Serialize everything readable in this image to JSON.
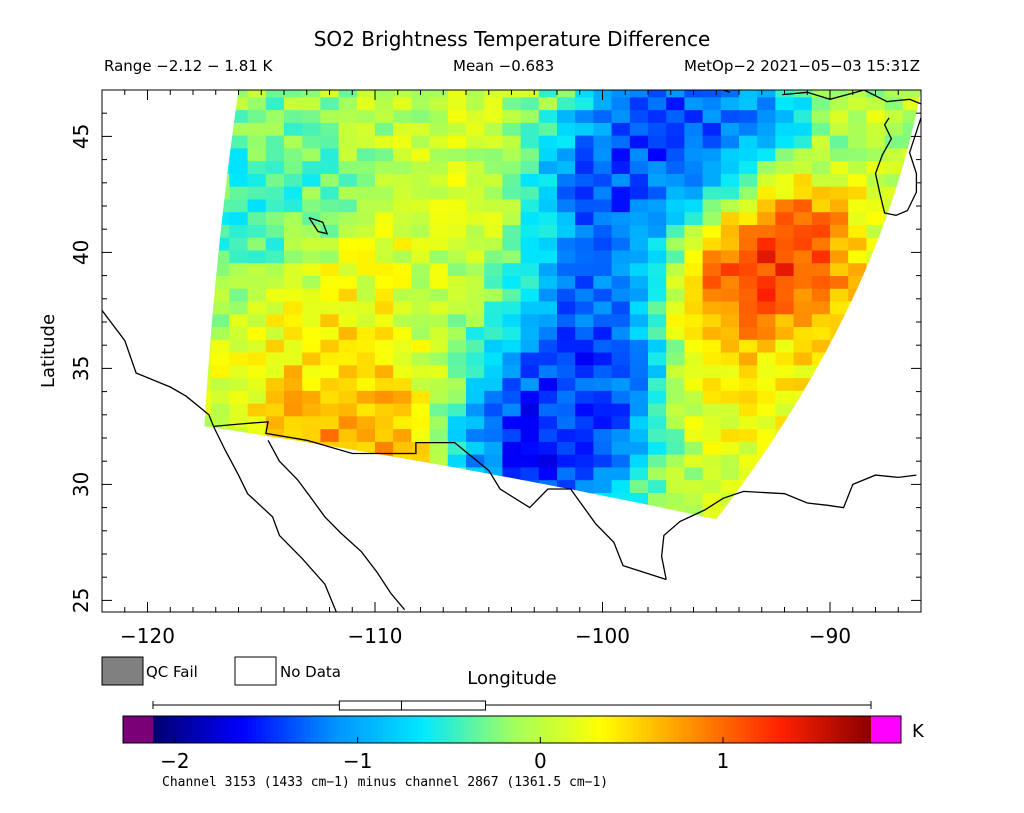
{
  "chart_data": {
    "type": "heatmap",
    "title": "SO2 Brightness Temperature Difference",
    "subtitle": {
      "range": "Range −2.12 − 1.81 K",
      "mean": "Mean −0.683",
      "platform_time": "MetOp−2 2021−05−03 15:31Z"
    },
    "xlabel": "Longitude",
    "ylabel": "Latitude",
    "xlim": [
      -122,
      -86
    ],
    "ylim": [
      24.5,
      47
    ],
    "xticks": [
      -120,
      -110,
      -100,
      -90
    ],
    "xtick_labels": [
      "−120",
      "−110",
      "−100",
      "−90"
    ],
    "yticks": [
      25,
      30,
      35,
      40,
      45
    ],
    "ytick_labels": [
      "25",
      "30",
      "35",
      "40",
      "45"
    ],
    "grid": false,
    "swath_corners": {
      "top_left": [
        -116,
        47
      ],
      "top_right": [
        -86,
        47
      ],
      "bottom_right": [
        -95,
        28.5
      ],
      "bottom_left": [
        -117.5,
        32.5
      ]
    },
    "field_features": [
      {
        "lon": -111,
        "lat": 37,
        "value": 0.4
      },
      {
        "lon": -108,
        "lat": 39,
        "value": 0.2
      },
      {
        "lon": -103,
        "lat": 33,
        "value": -1.8
      },
      {
        "lon": -101,
        "lat": 36,
        "value": -1.6
      },
      {
        "lon": -98,
        "lat": 42,
        "value": -1.7
      },
      {
        "lon": -96,
        "lat": 45,
        "value": -1.5
      },
      {
        "lon": -110.5,
        "lat": 33,
        "value": 0.9
      },
      {
        "lon": -93,
        "lat": 35,
        "value": 0.3
      },
      {
        "lon": -115,
        "lat": 42,
        "value": -0.5
      },
      {
        "lon": -94,
        "lat": 39.5,
        "value": 1.8
      },
      {
        "lon": -106,
        "lat": 37,
        "value": -0.2
      }
    ],
    "colorbar": {
      "label": "Channel 3153 (1433 cm−1) minus channel 2867 (1361.5 cm−1)",
      "unit": "K",
      "ticks": [
        -2,
        -1,
        0,
        1
      ],
      "tick_labels": [
        "−2",
        "−1",
        "0",
        "1"
      ],
      "min": -2.12,
      "max": 1.81,
      "colors": {
        "under": "#7a0077",
        "over": "#ff00ff",
        "stops": [
          "#000070",
          "#0000ff",
          "#0090ff",
          "#00e8ff",
          "#a0ff60",
          "#ffff00",
          "#ff9000",
          "#ff2000",
          "#8a0000"
        ]
      },
      "boxplot": {
        "min": -2.12,
        "q1": -1.1,
        "median": -0.76,
        "q3": -0.3,
        "max": 1.81
      }
    },
    "legend": {
      "qc_fail": {
        "label": "QC Fail",
        "color": "#808080"
      },
      "no_data": {
        "label": "No Data",
        "color": "#ffffff"
      }
    }
  }
}
